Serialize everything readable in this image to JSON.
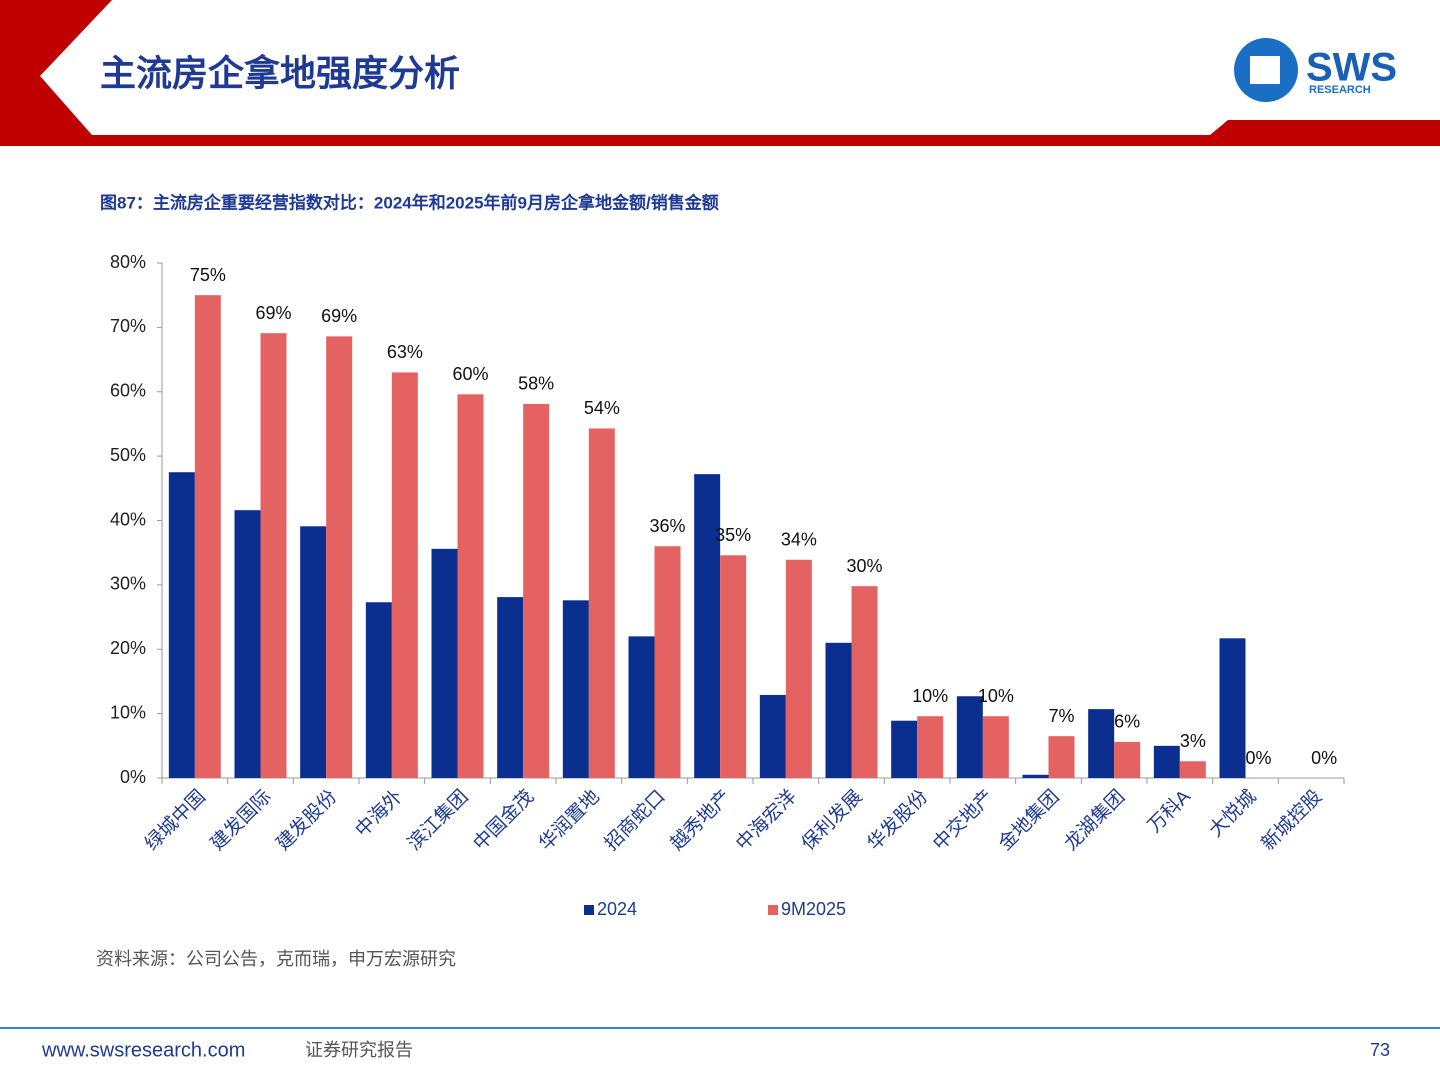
{
  "header": {
    "title": "主流房企拿地强度分析",
    "logo": "SWS",
    "logo_sub": "RESEARCH"
  },
  "chart_data": {
    "type": "bar",
    "title": "图87：主流房企重要经营指数对比：2024年和2025年前9月房企拿地金额/销售金额",
    "categories": [
      "绿城中国",
      "建发国际",
      "建发股份",
      "中海外",
      "滨江集团",
      "中国金茂",
      "华润置地",
      "招商蛇口",
      "越秀地产",
      "中海宏洋",
      "保利发展",
      "华发股份",
      "中交地产",
      "金地集团",
      "龙湖集团",
      "万科A",
      "大悦城",
      "新城控股"
    ],
    "series": [
      {
        "name": "2024",
        "color": "#0a2f8f",
        "values": [
          47.5,
          41.6,
          39.1,
          27.3,
          35.6,
          28.1,
          27.6,
          22.0,
          47.2,
          12.9,
          21.0,
          8.9,
          12.7,
          0.5,
          10.7,
          5.0,
          21.7,
          0
        ]
      },
      {
        "name": "9M2025",
        "color": "#e46262",
        "values": [
          75.0,
          69.1,
          68.6,
          63.0,
          59.6,
          58.1,
          54.3,
          36.0,
          34.6,
          33.9,
          29.8,
          9.6,
          9.6,
          6.5,
          5.6,
          2.6,
          0,
          0
        ],
        "value_labels": [
          "75%",
          "69%",
          "69%",
          "63%",
          "60%",
          "58%",
          "54%",
          "36%",
          "35%",
          "34%",
          "30%",
          "10%",
          "10%",
          "7%",
          "6%",
          "3%",
          "0%",
          "0%"
        ]
      }
    ],
    "ylim": [
      0,
      80
    ],
    "yticks": [
      {
        "value": 0,
        "label": "0%"
      },
      {
        "value": 10,
        "label": "10%"
      },
      {
        "value": 20,
        "label": "20%"
      },
      {
        "value": 30,
        "label": "30%"
      },
      {
        "value": 40,
        "label": "40%"
      },
      {
        "value": 50,
        "label": "50%"
      },
      {
        "value": 60,
        "label": "60%"
      },
      {
        "value": 70,
        "label": "70%"
      },
      {
        "value": 80,
        "label": "80%"
      }
    ],
    "grid": false,
    "legend": "bottom"
  },
  "source": "资料来源：公司公告，克而瑞，申万宏源研究",
  "footer": {
    "url": "www.swsresearch.com",
    "label": "证券研究报告",
    "page": "73"
  }
}
